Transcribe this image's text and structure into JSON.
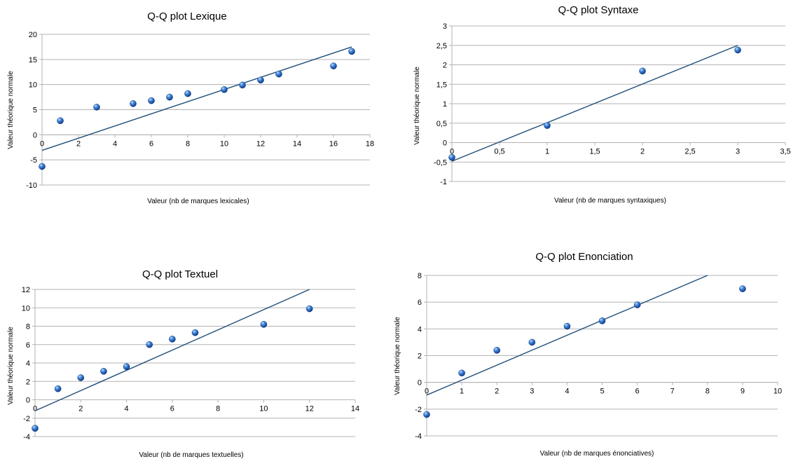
{
  "chart_data": [
    {
      "type": "scatter",
      "title": "Q-Q plot Lexique",
      "xlabel": "Valeur (nb de marques lexicales)",
      "ylabel": "Valeur théorique normale",
      "xlim": [
        0,
        18
      ],
      "ylim": [
        -10,
        20
      ],
      "xticks": [
        0,
        2,
        4,
        6,
        8,
        10,
        12,
        14,
        16,
        18
      ],
      "yticks": [
        -10,
        -5,
        0,
        5,
        10,
        15,
        20
      ],
      "xtick_labels": [
        "0",
        "2",
        "4",
        "6",
        "8",
        "10",
        "12",
        "14",
        "16",
        "18"
      ],
      "ytick_labels": [
        "-10",
        "-5",
        "0",
        "5",
        "10",
        "15",
        "20"
      ],
      "grid": true,
      "points": [
        {
          "x": 0,
          "y": -6.3
        },
        {
          "x": 1,
          "y": 2.8
        },
        {
          "x": 3,
          "y": 5.5
        },
        {
          "x": 5,
          "y": 6.2
        },
        {
          "x": 6,
          "y": 6.8
        },
        {
          "x": 7,
          "y": 7.5
        },
        {
          "x": 8,
          "y": 8.2
        },
        {
          "x": 10,
          "y": 9.0
        },
        {
          "x": 11,
          "y": 9.9
        },
        {
          "x": 12,
          "y": 10.9
        },
        {
          "x": 13,
          "y": 12.1
        },
        {
          "x": 16,
          "y": 13.7
        },
        {
          "x": 17,
          "y": 16.6
        }
      ],
      "fit_line": {
        "x": [
          0,
          17
        ],
        "y": [
          -3.1,
          17.5
        ]
      }
    },
    {
      "type": "scatter",
      "title": "Q-Q plot Syntaxe",
      "xlabel": "Valeur (nb de marques syntaxiques)",
      "ylabel": "Valeur théorique normale",
      "xlim": [
        0,
        3.5
      ],
      "ylim": [
        -1,
        3
      ],
      "xticks": [
        0,
        0.5,
        1,
        1.5,
        2,
        2.5,
        3,
        3.5
      ],
      "yticks": [
        -1,
        -0.5,
        0,
        0.5,
        1,
        1.5,
        2,
        2.5,
        3
      ],
      "xtick_labels": [
        "0",
        "0,5",
        "1",
        "1,5",
        "2",
        "2,5",
        "3",
        "3,5"
      ],
      "ytick_labels": [
        "-1",
        "-0,5",
        "0",
        "0,5",
        "1",
        "1,5",
        "2",
        "2,5",
        "3"
      ],
      "grid": true,
      "points": [
        {
          "x": 0,
          "y": -0.38
        },
        {
          "x": 1,
          "y": 0.44
        },
        {
          "x": 2,
          "y": 1.84
        },
        {
          "x": 3,
          "y": 2.38
        }
      ],
      "fit_line": {
        "x": [
          0,
          3
        ],
        "y": [
          -0.48,
          2.5
        ]
      }
    },
    {
      "type": "scatter",
      "title": "Q-Q plot Textuel",
      "xlabel": "Valeur (nb de marques textuelles)",
      "ylabel": "Valeur théorique normale",
      "xlim": [
        0,
        14
      ],
      "ylim": [
        -4,
        12
      ],
      "xticks": [
        0,
        2,
        4,
        6,
        8,
        10,
        12,
        14
      ],
      "yticks": [
        -4,
        -2,
        0,
        2,
        4,
        6,
        8,
        10,
        12
      ],
      "xtick_labels": [
        "0",
        "2",
        "4",
        "6",
        "8",
        "10",
        "12",
        "14"
      ],
      "ytick_labels": [
        "-4",
        "-2",
        "0",
        "2",
        "4",
        "6",
        "8",
        "10",
        "12"
      ],
      "grid": true,
      "points": [
        {
          "x": 0,
          "y": -3.1
        },
        {
          "x": 1,
          "y": 1.2
        },
        {
          "x": 2,
          "y": 2.4
        },
        {
          "x": 3,
          "y": 3.1
        },
        {
          "x": 4,
          "y": 3.6
        },
        {
          "x": 5,
          "y": 6.0
        },
        {
          "x": 6,
          "y": 6.6
        },
        {
          "x": 7,
          "y": 7.3
        },
        {
          "x": 10,
          "y": 8.2
        },
        {
          "x": 12,
          "y": 9.9
        }
      ],
      "fit_line": {
        "x": [
          0,
          12
        ],
        "y": [
          -1.2,
          12
        ]
      }
    },
    {
      "type": "scatter",
      "title": "Q-Q plot Enonciation",
      "xlabel": "Valeur (nb de marques énonciatives)",
      "ylabel": "Valeur théorique normale",
      "xlim": [
        0,
        10
      ],
      "ylim": [
        -4,
        8
      ],
      "xticks": [
        0,
        1,
        2,
        3,
        4,
        5,
        6,
        7,
        8,
        9,
        10
      ],
      "yticks": [
        -4,
        -2,
        0,
        2,
        4,
        6,
        8
      ],
      "xtick_labels": [
        "0",
        "1",
        "2",
        "3",
        "4",
        "5",
        "6",
        "7",
        "8",
        "9",
        "10"
      ],
      "ytick_labels": [
        "-4",
        "-2",
        "0",
        "2",
        "4",
        "6",
        "8"
      ],
      "grid": true,
      "points": [
        {
          "x": 0,
          "y": -2.4
        },
        {
          "x": 1,
          "y": 0.7
        },
        {
          "x": 2,
          "y": 2.4
        },
        {
          "x": 3,
          "y": 3.0
        },
        {
          "x": 4,
          "y": 4.2
        },
        {
          "x": 5,
          "y": 4.6
        },
        {
          "x": 6,
          "y": 5.8
        },
        {
          "x": 9,
          "y": 7.0
        }
      ],
      "fit_line": {
        "x": [
          0,
          8
        ],
        "y": [
          -0.95,
          8
        ]
      }
    }
  ]
}
